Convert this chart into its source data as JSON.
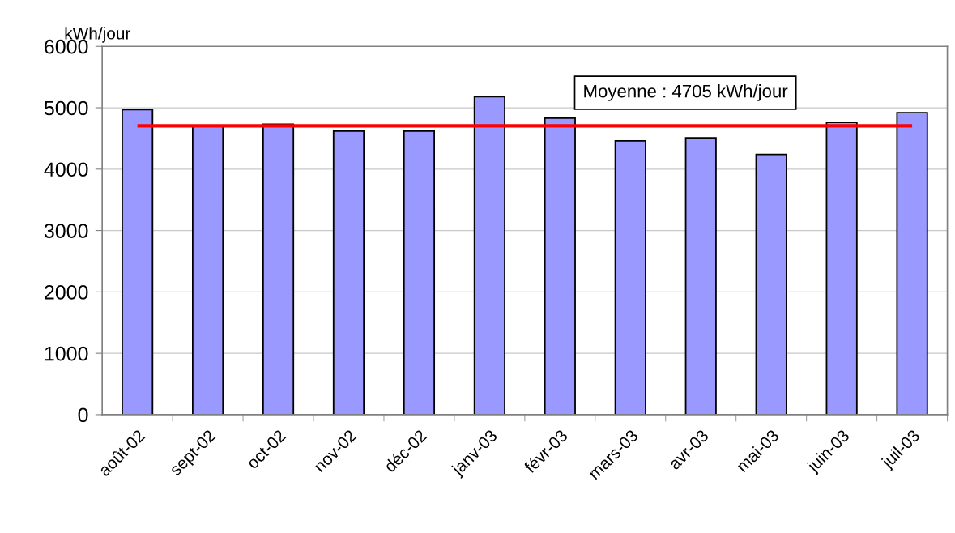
{
  "chart_data": {
    "type": "bar",
    "ylabel": "kWh/jour",
    "categories": [
      "août-02",
      "sept-02",
      "oct-02",
      "nov-02",
      "déc-02",
      "janv-03",
      "févr-03",
      "mars-03",
      "avr-03",
      "mai-03",
      "juin-03",
      "juil-03"
    ],
    "values": [
      4970,
      4700,
      4730,
      4620,
      4620,
      5180,
      4830,
      4460,
      4510,
      4240,
      4760,
      4920
    ],
    "color": "#9999ff",
    "ylim": [
      0,
      6000
    ],
    "yticks": [
      0,
      1000,
      2000,
      3000,
      4000,
      5000,
      6000
    ],
    "grid": "y",
    "ref_lines": [
      {
        "axis": "y",
        "value": 4705,
        "label": "Moyenne : 4705 kWh/jour",
        "color": "#ff0000"
      }
    ]
  }
}
